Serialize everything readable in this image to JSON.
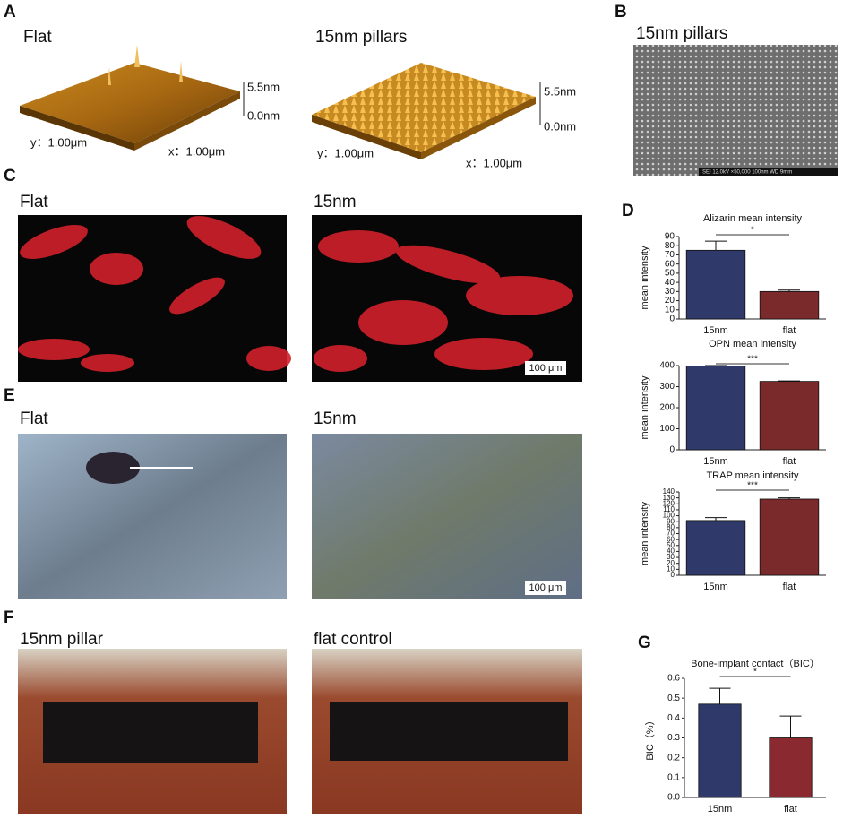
{
  "panels": {
    "A": {
      "letter": "A",
      "left_title": "Flat",
      "right_title": "15nm pillars",
      "z_max": "5.5nm",
      "z_min": "0.0nm",
      "y_extent": "y：1.00μm",
      "x_extent": "x：1.00μm"
    },
    "B": {
      "letter": "B",
      "title": "15nm pillars",
      "sem_bar": "SEI  12.0kV  ×50,000  100nm  WD 9mm"
    },
    "C": {
      "letter": "C",
      "left_title": "Flat",
      "right_title": "15nm",
      "scale_bar": "100 μm"
    },
    "D": {
      "letter": "D"
    },
    "E": {
      "letter": "E",
      "left_title": "Flat",
      "right_title": "15nm",
      "scale_bar": "100 μm"
    },
    "F": {
      "letter": "F",
      "left_title": "15nm pillar",
      "right_title": "flat control"
    },
    "G": {
      "letter": "G"
    }
  },
  "chart_data": [
    {
      "type": "bar",
      "title": "Alizarin mean intensity",
      "y_label": "mean intensity",
      "categories": [
        "15nm",
        "flat"
      ],
      "values": [
        75,
        30
      ],
      "errors": [
        10,
        1.5
      ],
      "colors": [
        "#2f3a6b",
        "#7b2a2c"
      ],
      "ylim": [
        0,
        90
      ],
      "yticks": [
        0,
        10,
        20,
        30,
        40,
        50,
        60,
        70,
        80,
        90
      ],
      "significance": "*"
    },
    {
      "type": "bar",
      "title": "OPN mean intensity",
      "y_label": "mean intensity",
      "categories": [
        "15nm",
        "flat"
      ],
      "values": [
        398,
        325
      ],
      "errors": [
        2,
        2
      ],
      "colors": [
        "#2f3a6b",
        "#7b2a2c"
      ],
      "ylim": [
        0,
        400
      ],
      "yticks": [
        0,
        100,
        200,
        300,
        400
      ],
      "significance": "***"
    },
    {
      "type": "bar",
      "title": "TRAP mean intensity",
      "y_label": "mean intensity",
      "categories": [
        "15nm",
        "flat"
      ],
      "values": [
        92,
        128
      ],
      "errors": [
        5,
        2
      ],
      "colors": [
        "#2f3a6b",
        "#7b2a2c"
      ],
      "ylim": [
        0,
        140
      ],
      "yticks": [
        0,
        10,
        20,
        30,
        40,
        50,
        60,
        70,
        80,
        90,
        100,
        110,
        120,
        130,
        140
      ],
      "significance": "***"
    },
    {
      "type": "bar",
      "title": "Bone-implant contact（BIC）",
      "y_label": "BIC（%）",
      "categories": [
        "15nm",
        "flat"
      ],
      "values": [
        0.47,
        0.3
      ],
      "errors": [
        0.08,
        0.11
      ],
      "colors": [
        "#2f3a6b",
        "#8a2a30"
      ],
      "ylim": [
        0,
        0.6
      ],
      "yticks": [
        {
          "value": 0,
          "label": "0.0"
        },
        0.1,
        0.2,
        0.3,
        0.4,
        0.5,
        0.6
      ],
      "significance": "*"
    }
  ]
}
